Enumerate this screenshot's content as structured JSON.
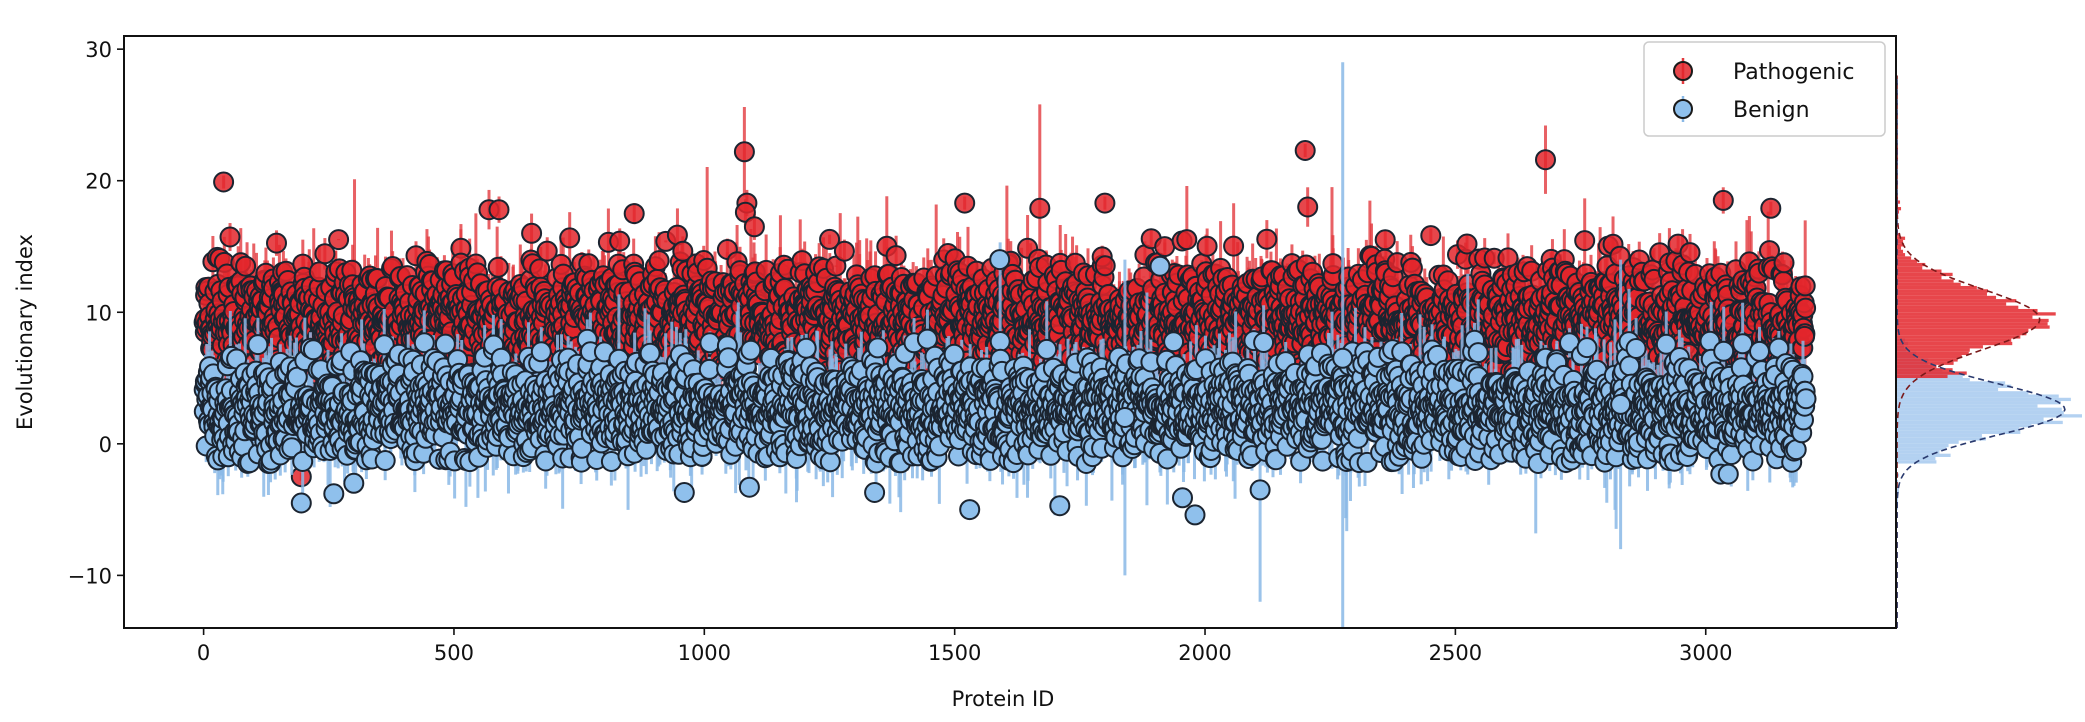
{
  "chart_data": {
    "type": "scatter",
    "title": "",
    "xlabel": "Protein ID",
    "ylabel": "Evolutionary index",
    "xlim": [
      -159,
      3380
    ],
    "ylim": [
      -14,
      31
    ],
    "xticks": [
      "0",
      "500",
      "1000",
      "1500",
      "2000",
      "2500",
      "3000"
    ],
    "xtick_values": [
      0,
      500,
      1000,
      1500,
      2000,
      2500,
      3000
    ],
    "yticks": [
      "−10",
      "0",
      "10",
      "20",
      "30"
    ],
    "ytick_values": [
      -10,
      0,
      10,
      20,
      30
    ],
    "grid": false,
    "legend": {
      "placement": "top-right",
      "entries": [
        "Pathogenic",
        "Benign"
      ]
    },
    "marginal_histogram": {
      "orientation": "horizontal",
      "side": "right",
      "bin_width": 0.25,
      "fit": "gaussian (dashed)"
    },
    "series": [
      {
        "name": "Pathogenic",
        "color": "#e3262b",
        "error_color": "#e23a3e",
        "n": 3200,
        "x_range": [
          0,
          3200
        ],
        "distribution": {
          "mean": 9.4,
          "sd": 2.2,
          "min": 5.0,
          "max": 16.0
        },
        "error_sd": 1.6,
        "notable_points": [
          {
            "x": 40,
            "y": 19.9,
            "err": 0.5
          },
          {
            "x": 1080,
            "y": 22.2,
            "err": 3.4
          },
          {
            "x": 1085,
            "y": 18.3,
            "err": 1.0
          },
          {
            "x": 1082,
            "y": 17.6,
            "err": 1.0
          },
          {
            "x": 2200,
            "y": 22.3,
            "err": 0.5
          },
          {
            "x": 2680,
            "y": 21.6,
            "err": 2.6
          },
          {
            "x": 570,
            "y": 17.8,
            "err": 1.5
          },
          {
            "x": 590,
            "y": 17.8,
            "err": 1.0
          },
          {
            "x": 860,
            "y": 17.5,
            "err": 0.8
          },
          {
            "x": 1800,
            "y": 18.3,
            "err": 0.5
          },
          {
            "x": 1670,
            "y": 17.9,
            "err": 7.9
          },
          {
            "x": 3035,
            "y": 18.5,
            "err": 1.0
          },
          {
            "x": 3130,
            "y": 17.9,
            "err": 0.5
          },
          {
            "x": 1520,
            "y": 18.3,
            "err": 0.5
          },
          {
            "x": 2205,
            "y": 18.0,
            "err": 1.5
          },
          {
            "x": 195,
            "y": -2.5,
            "err": 0.3
          },
          {
            "x": 1100,
            "y": 16.5,
            "err": 1.0
          },
          {
            "x": 655,
            "y": 16.0,
            "err": 1.5
          }
        ]
      },
      {
        "name": "Benign",
        "color": "#8fc0ec",
        "error_color": "#8ab9e6",
        "n": 3200,
        "x_range": [
          0,
          3200
        ],
        "distribution": {
          "mean": 2.6,
          "sd": 1.9,
          "min": -1.5,
          "max": 8.0
        },
        "error_sd": 1.7,
        "notable_points": [
          {
            "x": 195,
            "y": -4.5,
            "err": 0.3
          },
          {
            "x": 260,
            "y": -3.8,
            "err": 0.5
          },
          {
            "x": 300,
            "y": -3.0,
            "err": 0.5
          },
          {
            "x": 1530,
            "y": -5.0,
            "err": 0.5
          },
          {
            "x": 1980,
            "y": -5.4,
            "err": 0.5
          },
          {
            "x": 1710,
            "y": -4.7,
            "err": 0.5
          },
          {
            "x": 2110,
            "y": -3.5,
            "err": 8.5
          },
          {
            "x": 1090,
            "y": -3.3,
            "err": 0.5
          },
          {
            "x": 3030,
            "y": -2.3,
            "err": 0.5
          },
          {
            "x": 3045,
            "y": -2.3,
            "err": 0.5
          },
          {
            "x": 960,
            "y": -3.7,
            "err": 0.5
          },
          {
            "x": 1910,
            "y": 13.5,
            "err": 0.5
          },
          {
            "x": 1590,
            "y": 14.0,
            "err": 0.5
          },
          {
            "x": 2275,
            "y": 6.5,
            "err": 22.5
          },
          {
            "x": 1840,
            "y": 2.0,
            "err": 12.0
          },
          {
            "x": 2830,
            "y": 3.0,
            "err": 11.0
          },
          {
            "x": 1340,
            "y": -3.7,
            "err": 0.5
          },
          {
            "x": 1955,
            "y": -4.1,
            "err": 0.5
          }
        ]
      }
    ]
  }
}
